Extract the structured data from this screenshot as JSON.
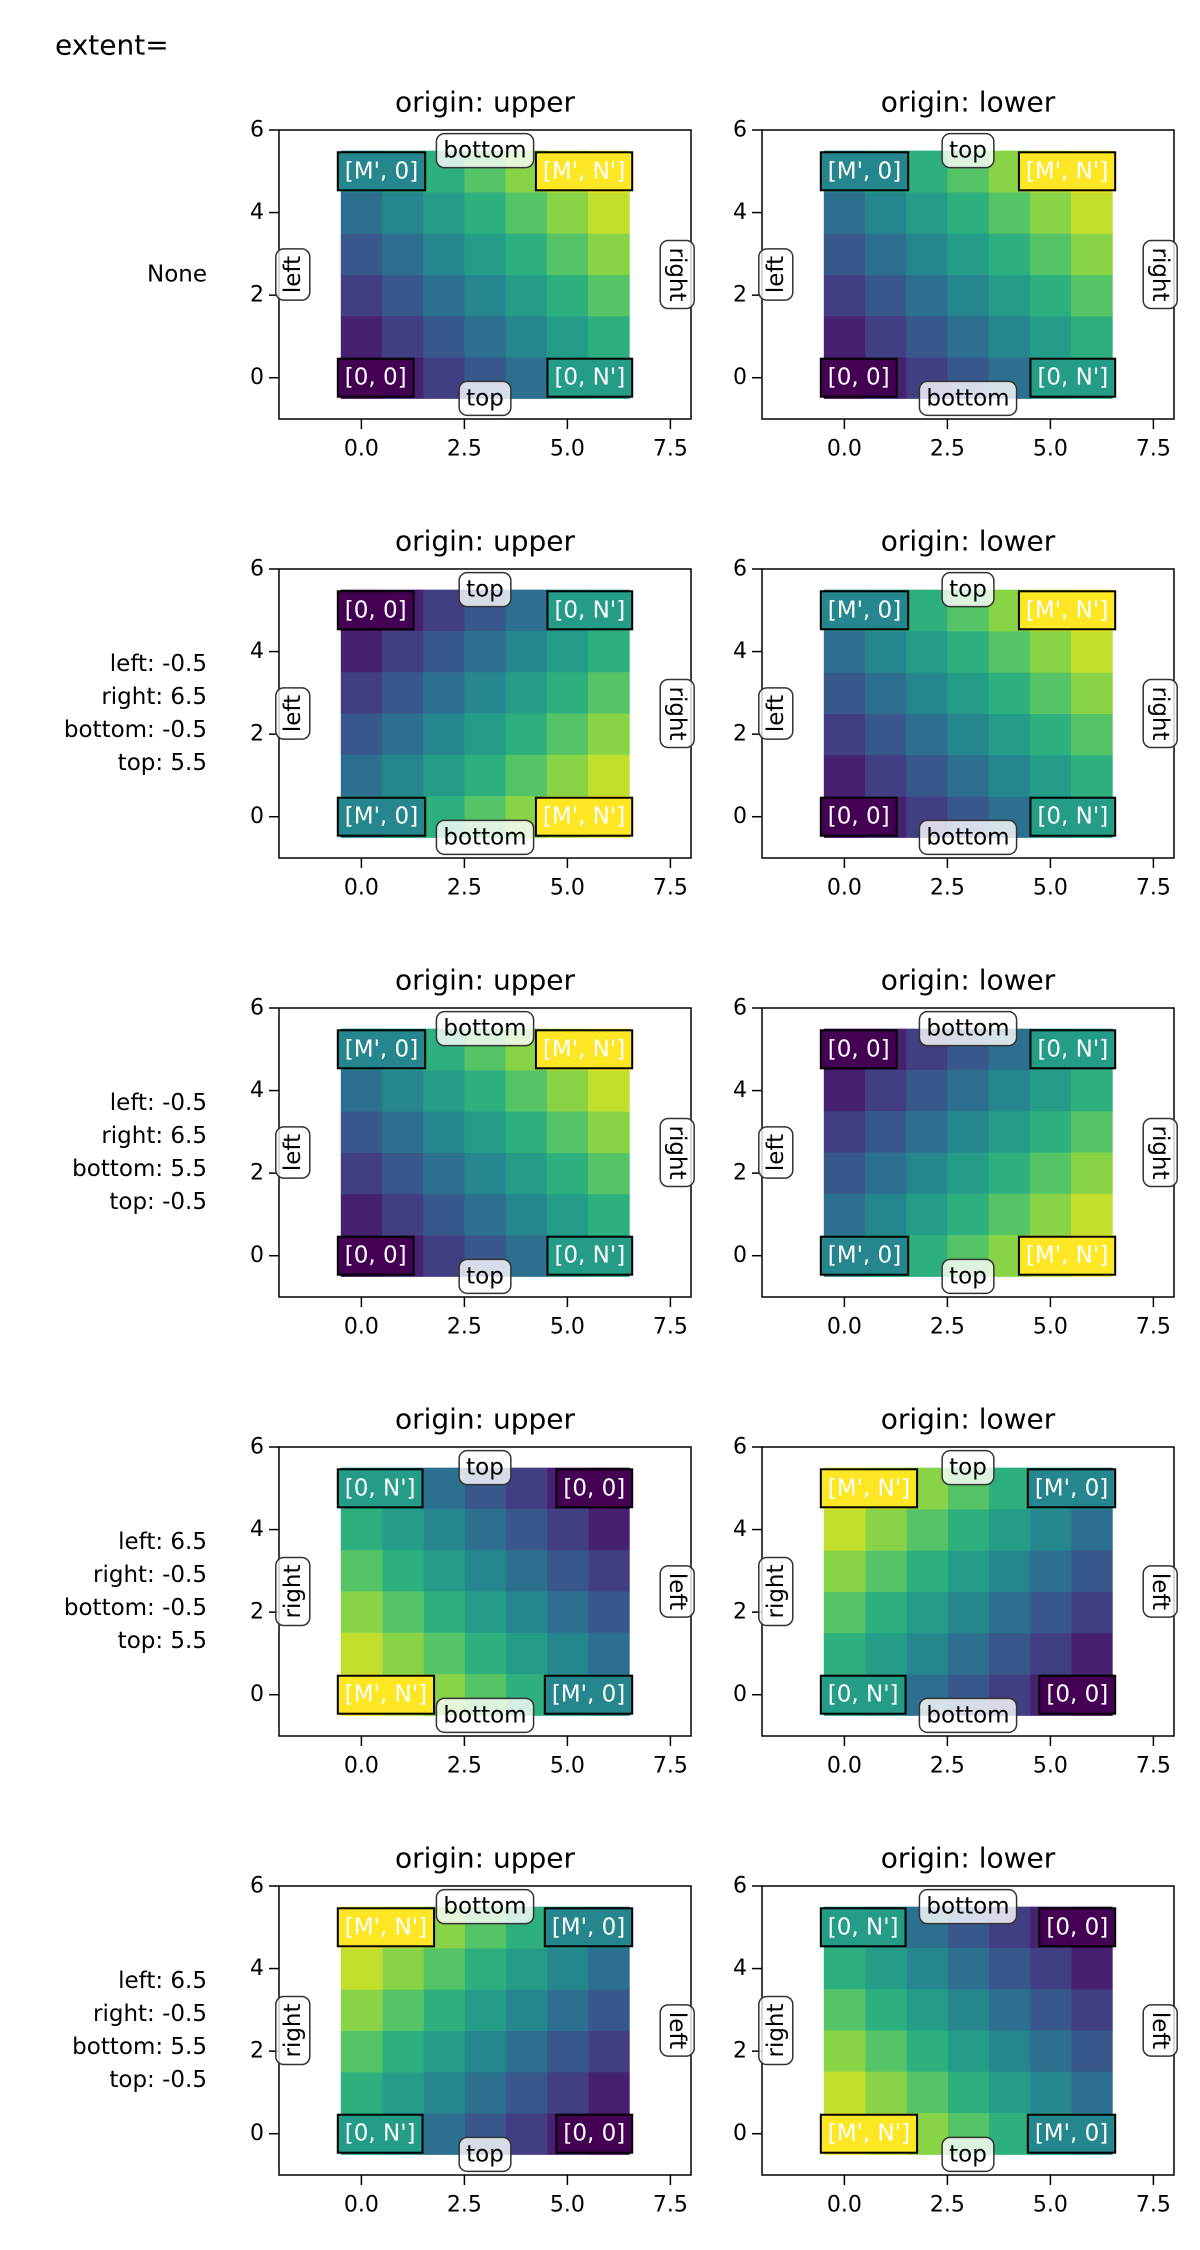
{
  "title": "extent=",
  "row_labels": [
    [
      "None"
    ],
    [
      "left: -0.5",
      "right: 6.5",
      "bottom: -0.5",
      "top: 5.5"
    ],
    [
      "left: -0.5",
      "right: 6.5",
      "bottom: 5.5",
      "top: -0.5"
    ],
    [
      "left: 6.5",
      "right: -0.5",
      "bottom: -0.5",
      "top: 5.5"
    ],
    [
      "left: 6.5",
      "right: -0.5",
      "bottom: 5.5",
      "top: -0.5"
    ]
  ],
  "chart_data": [
    {
      "type": "heatmap",
      "title": "origin: upper",
      "origin": "upper",
      "cmap": "viridis",
      "extent": [
        -0.5,
        6.5,
        5.5,
        -0.5
      ],
      "xlim": [
        -2,
        8
      ],
      "ylim": [
        -1,
        6
      ],
      "xticks": [
        {
          "value": 0,
          "label": "0.0"
        },
        {
          "value": 2.5,
          "label": "2.5"
        },
        {
          "value": 5,
          "label": "5.0"
        },
        {
          "value": 7.5,
          "label": "7.5"
        }
      ],
      "yticks": [
        0,
        2,
        4,
        6
      ],
      "values": [
        [
          0,
          1,
          2,
          3,
          4,
          5,
          6
        ],
        [
          1,
          2,
          3,
          4,
          5,
          6,
          7
        ],
        [
          2,
          3,
          4,
          5,
          6,
          7,
          8
        ],
        [
          3,
          4,
          5,
          6,
          7,
          8,
          9
        ],
        [
          4,
          5,
          6,
          7,
          8,
          9,
          10
        ],
        [
          5,
          6,
          7,
          8,
          9,
          10,
          11
        ]
      ],
      "corner_labels": [
        "[0, 0]",
        "[M', 0]",
        "[0, N']",
        "[M', N']"
      ],
      "edge_labels": [
        "left",
        "right",
        "bottom",
        "top"
      ]
    },
    {
      "type": "heatmap",
      "title": "origin: lower",
      "origin": "lower",
      "cmap": "viridis",
      "extent": [
        -0.5,
        6.5,
        -0.5,
        5.5
      ],
      "xlim": [
        -2,
        8
      ],
      "ylim": [
        -1,
        6
      ],
      "xticks": [
        {
          "value": 0,
          "label": "0.0"
        },
        {
          "value": 2.5,
          "label": "2.5"
        },
        {
          "value": 5,
          "label": "5.0"
        },
        {
          "value": 7.5,
          "label": "7.5"
        }
      ],
      "yticks": [
        0,
        2,
        4,
        6
      ],
      "values": [
        [
          0,
          1,
          2,
          3,
          4,
          5,
          6
        ],
        [
          1,
          2,
          3,
          4,
          5,
          6,
          7
        ],
        [
          2,
          3,
          4,
          5,
          6,
          7,
          8
        ],
        [
          3,
          4,
          5,
          6,
          7,
          8,
          9
        ],
        [
          4,
          5,
          6,
          7,
          8,
          9,
          10
        ],
        [
          5,
          6,
          7,
          8,
          9,
          10,
          11
        ]
      ],
      "corner_labels": [
        "[0, 0]",
        "[M', 0]",
        "[0, N']",
        "[M', N']"
      ],
      "edge_labels": [
        "left",
        "right",
        "bottom",
        "top"
      ]
    },
    {
      "type": "heatmap",
      "title": "origin: upper",
      "origin": "upper",
      "cmap": "viridis",
      "extent": [
        -0.5,
        6.5,
        -0.5,
        5.5
      ],
      "xlim": [
        -2,
        8
      ],
      "ylim": [
        -1,
        6
      ],
      "xticks": [
        {
          "value": 0,
          "label": "0.0"
        },
        {
          "value": 2.5,
          "label": "2.5"
        },
        {
          "value": 5,
          "label": "5.0"
        },
        {
          "value": 7.5,
          "label": "7.5"
        }
      ],
      "yticks": [
        0,
        2,
        4,
        6
      ],
      "values": [
        [
          0,
          1,
          2,
          3,
          4,
          5,
          6
        ],
        [
          1,
          2,
          3,
          4,
          5,
          6,
          7
        ],
        [
          2,
          3,
          4,
          5,
          6,
          7,
          8
        ],
        [
          3,
          4,
          5,
          6,
          7,
          8,
          9
        ],
        [
          4,
          5,
          6,
          7,
          8,
          9,
          10
        ],
        [
          5,
          6,
          7,
          8,
          9,
          10,
          11
        ]
      ],
      "corner_labels": [
        "[0, 0]",
        "[M', 0]",
        "[0, N']",
        "[M', N']"
      ],
      "edge_labels": [
        "left",
        "right",
        "bottom",
        "top"
      ]
    },
    {
      "type": "heatmap",
      "title": "origin: lower",
      "origin": "lower",
      "cmap": "viridis",
      "extent": [
        -0.5,
        6.5,
        -0.5,
        5.5
      ],
      "xlim": [
        -2,
        8
      ],
      "ylim": [
        -1,
        6
      ],
      "xticks": [
        {
          "value": 0,
          "label": "0.0"
        },
        {
          "value": 2.5,
          "label": "2.5"
        },
        {
          "value": 5,
          "label": "5.0"
        },
        {
          "value": 7.5,
          "label": "7.5"
        }
      ],
      "yticks": [
        0,
        2,
        4,
        6
      ],
      "values": [
        [
          0,
          1,
          2,
          3,
          4,
          5,
          6
        ],
        [
          1,
          2,
          3,
          4,
          5,
          6,
          7
        ],
        [
          2,
          3,
          4,
          5,
          6,
          7,
          8
        ],
        [
          3,
          4,
          5,
          6,
          7,
          8,
          9
        ],
        [
          4,
          5,
          6,
          7,
          8,
          9,
          10
        ],
        [
          5,
          6,
          7,
          8,
          9,
          10,
          11
        ]
      ],
      "corner_labels": [
        "[0, 0]",
        "[M', 0]",
        "[0, N']",
        "[M', N']"
      ],
      "edge_labels": [
        "left",
        "right",
        "bottom",
        "top"
      ]
    },
    {
      "type": "heatmap",
      "title": "origin: upper",
      "origin": "upper",
      "cmap": "viridis",
      "extent": [
        -0.5,
        6.5,
        5.5,
        -0.5
      ],
      "xlim": [
        -2,
        8
      ],
      "ylim": [
        -1,
        6
      ],
      "xticks": [
        {
          "value": 0,
          "label": "0.0"
        },
        {
          "value": 2.5,
          "label": "2.5"
        },
        {
          "value": 5,
          "label": "5.0"
        },
        {
          "value": 7.5,
          "label": "7.5"
        }
      ],
      "yticks": [
        0,
        2,
        4,
        6
      ],
      "values": [
        [
          0,
          1,
          2,
          3,
          4,
          5,
          6
        ],
        [
          1,
          2,
          3,
          4,
          5,
          6,
          7
        ],
        [
          2,
          3,
          4,
          5,
          6,
          7,
          8
        ],
        [
          3,
          4,
          5,
          6,
          7,
          8,
          9
        ],
        [
          4,
          5,
          6,
          7,
          8,
          9,
          10
        ],
        [
          5,
          6,
          7,
          8,
          9,
          10,
          11
        ]
      ],
      "corner_labels": [
        "[0, 0]",
        "[M', 0]",
        "[0, N']",
        "[M', N']"
      ],
      "edge_labels": [
        "left",
        "right",
        "bottom",
        "top"
      ]
    },
    {
      "type": "heatmap",
      "title": "origin: lower",
      "origin": "lower",
      "cmap": "viridis",
      "extent": [
        -0.5,
        6.5,
        5.5,
        -0.5
      ],
      "xlim": [
        -2,
        8
      ],
      "ylim": [
        -1,
        6
      ],
      "xticks": [
        {
          "value": 0,
          "label": "0.0"
        },
        {
          "value": 2.5,
          "label": "2.5"
        },
        {
          "value": 5,
          "label": "5.0"
        },
        {
          "value": 7.5,
          "label": "7.5"
        }
      ],
      "yticks": [
        0,
        2,
        4,
        6
      ],
      "values": [
        [
          0,
          1,
          2,
          3,
          4,
          5,
          6
        ],
        [
          1,
          2,
          3,
          4,
          5,
          6,
          7
        ],
        [
          2,
          3,
          4,
          5,
          6,
          7,
          8
        ],
        [
          3,
          4,
          5,
          6,
          7,
          8,
          9
        ],
        [
          4,
          5,
          6,
          7,
          8,
          9,
          10
        ],
        [
          5,
          6,
          7,
          8,
          9,
          10,
          11
        ]
      ],
      "corner_labels": [
        "[0, 0]",
        "[M', 0]",
        "[0, N']",
        "[M', N']"
      ],
      "edge_labels": [
        "left",
        "right",
        "bottom",
        "top"
      ]
    },
    {
      "type": "heatmap",
      "title": "origin: upper",
      "origin": "upper",
      "cmap": "viridis",
      "extent": [
        6.5,
        -0.5,
        -0.5,
        5.5
      ],
      "xlim": [
        -2,
        8
      ],
      "ylim": [
        -1,
        6
      ],
      "xticks": [
        {
          "value": 0,
          "label": "0.0"
        },
        {
          "value": 2.5,
          "label": "2.5"
        },
        {
          "value": 5,
          "label": "5.0"
        },
        {
          "value": 7.5,
          "label": "7.5"
        }
      ],
      "yticks": [
        0,
        2,
        4,
        6
      ],
      "values": [
        [
          0,
          1,
          2,
          3,
          4,
          5,
          6
        ],
        [
          1,
          2,
          3,
          4,
          5,
          6,
          7
        ],
        [
          2,
          3,
          4,
          5,
          6,
          7,
          8
        ],
        [
          3,
          4,
          5,
          6,
          7,
          8,
          9
        ],
        [
          4,
          5,
          6,
          7,
          8,
          9,
          10
        ],
        [
          5,
          6,
          7,
          8,
          9,
          10,
          11
        ]
      ],
      "corner_labels": [
        "[0, 0]",
        "[M', 0]",
        "[0, N']",
        "[M', N']"
      ],
      "edge_labels": [
        "left",
        "right",
        "bottom",
        "top"
      ]
    },
    {
      "type": "heatmap",
      "title": "origin: lower",
      "origin": "lower",
      "cmap": "viridis",
      "extent": [
        6.5,
        -0.5,
        -0.5,
        5.5
      ],
      "xlim": [
        -2,
        8
      ],
      "ylim": [
        -1,
        6
      ],
      "xticks": [
        {
          "value": 0,
          "label": "0.0"
        },
        {
          "value": 2.5,
          "label": "2.5"
        },
        {
          "value": 5,
          "label": "5.0"
        },
        {
          "value": 7.5,
          "label": "7.5"
        }
      ],
      "yticks": [
        0,
        2,
        4,
        6
      ],
      "values": [
        [
          0,
          1,
          2,
          3,
          4,
          5,
          6
        ],
        [
          1,
          2,
          3,
          4,
          5,
          6,
          7
        ],
        [
          2,
          3,
          4,
          5,
          6,
          7,
          8
        ],
        [
          3,
          4,
          5,
          6,
          7,
          8,
          9
        ],
        [
          4,
          5,
          6,
          7,
          8,
          9,
          10
        ],
        [
          5,
          6,
          7,
          8,
          9,
          10,
          11
        ]
      ],
      "corner_labels": [
        "[0, 0]",
        "[M', 0]",
        "[0, N']",
        "[M', N']"
      ],
      "edge_labels": [
        "left",
        "right",
        "bottom",
        "top"
      ]
    },
    {
      "type": "heatmap",
      "title": "origin: upper",
      "origin": "upper",
      "cmap": "viridis",
      "extent": [
        6.5,
        -0.5,
        5.5,
        -0.5
      ],
      "xlim": [
        -2,
        8
      ],
      "ylim": [
        -1,
        6
      ],
      "xticks": [
        {
          "value": 0,
          "label": "0.0"
        },
        {
          "value": 2.5,
          "label": "2.5"
        },
        {
          "value": 5,
          "label": "5.0"
        },
        {
          "value": 7.5,
          "label": "7.5"
        }
      ],
      "yticks": [
        0,
        2,
        4,
        6
      ],
      "values": [
        [
          0,
          1,
          2,
          3,
          4,
          5,
          6
        ],
        [
          1,
          2,
          3,
          4,
          5,
          6,
          7
        ],
        [
          2,
          3,
          4,
          5,
          6,
          7,
          8
        ],
        [
          3,
          4,
          5,
          6,
          7,
          8,
          9
        ],
        [
          4,
          5,
          6,
          7,
          8,
          9,
          10
        ],
        [
          5,
          6,
          7,
          8,
          9,
          10,
          11
        ]
      ],
      "corner_labels": [
        "[0, 0]",
        "[M', 0]",
        "[0, N']",
        "[M', N']"
      ],
      "edge_labels": [
        "left",
        "right",
        "bottom",
        "top"
      ]
    },
    {
      "type": "heatmap",
      "title": "origin: lower",
      "origin": "lower",
      "cmap": "viridis",
      "extent": [
        6.5,
        -0.5,
        5.5,
        -0.5
      ],
      "xlim": [
        -2,
        8
      ],
      "ylim": [
        -1,
        6
      ],
      "xticks": [
        {
          "value": 0,
          "label": "0.0"
        },
        {
          "value": 2.5,
          "label": "2.5"
        },
        {
          "value": 5,
          "label": "5.0"
        },
        {
          "value": 7.5,
          "label": "7.5"
        }
      ],
      "yticks": [
        0,
        2,
        4,
        6
      ],
      "values": [
        [
          0,
          1,
          2,
          3,
          4,
          5,
          6
        ],
        [
          1,
          2,
          3,
          4,
          5,
          6,
          7
        ],
        [
          2,
          3,
          4,
          5,
          6,
          7,
          8
        ],
        [
          3,
          4,
          5,
          6,
          7,
          8,
          9
        ],
        [
          4,
          5,
          6,
          7,
          8,
          9,
          10
        ],
        [
          5,
          6,
          7,
          8,
          9,
          10,
          11
        ]
      ],
      "corner_labels": [
        "[0, 0]",
        "[M', 0]",
        "[0, N']",
        "[M', N']"
      ],
      "edge_labels": [
        "left",
        "right",
        "bottom",
        "top"
      ]
    }
  ]
}
